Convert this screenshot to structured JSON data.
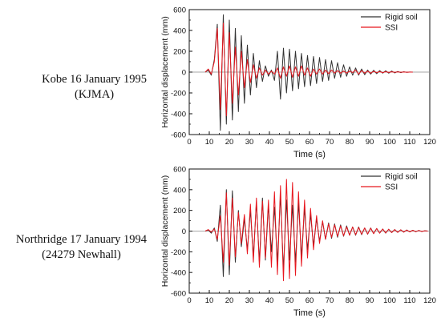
{
  "rows": [
    {
      "line1": "Kobe 16 January 1995",
      "line2": "(KJMA)"
    },
    {
      "line1": "Northridge 17 January 1994",
      "line2": "(24279 Newhall)"
    }
  ],
  "colors": {
    "rigid": "#333333",
    "ssi": "#e8171f",
    "axis": "#111111"
  },
  "chart_data": [
    {
      "type": "line",
      "xlabel": "Time (s)",
      "ylabel": "Horizontal displacement (mm)",
      "xlim": [
        0,
        120
      ],
      "ylim": [
        -600,
        600
      ],
      "xticks": [
        0,
        10,
        20,
        30,
        40,
        50,
        60,
        70,
        80,
        90,
        100,
        110,
        120
      ],
      "yticks": [
        -600,
        -400,
        -200,
        0,
        200,
        400,
        600
      ],
      "legend_position": "top-right",
      "series": [
        {
          "name": "Rigid soil",
          "color": "#333333",
          "x": [
            8,
            9.5,
            11,
            12.5,
            14,
            15.5,
            17,
            18.5,
            20,
            21.5,
            23,
            24.5,
            26,
            27.5,
            29,
            30.5,
            32,
            33.5,
            35,
            36.5,
            38,
            39.5,
            41,
            42.5,
            44,
            45.5,
            47,
            48.5,
            50,
            51.5,
            53,
            54.5,
            56,
            57.5,
            59,
            60.5,
            62,
            63.5,
            65,
            66.5,
            68,
            69.5,
            71,
            72.5,
            74,
            75.5,
            77,
            78.5,
            80,
            81.5,
            83,
            84.5,
            86,
            87.5,
            89,
            90.5,
            92,
            93.5,
            95,
            96.5,
            98,
            99.5,
            101,
            102.5,
            104,
            105.5,
            107,
            108.5,
            110,
            111.5
          ],
          "y": [
            0,
            20,
            -30,
            120,
            460,
            -560,
            550,
            -500,
            500,
            -460,
            420,
            -380,
            350,
            -300,
            260,
            -220,
            180,
            -150,
            110,
            -90,
            60,
            -40,
            20,
            -80,
            200,
            -260,
            230,
            -200,
            220,
            -180,
            200,
            -160,
            180,
            -140,
            160,
            -130,
            150,
            -110,
            140,
            -90,
            120,
            -80,
            110,
            -60,
            90,
            -50,
            70,
            -40,
            50,
            -30,
            40,
            -30,
            30,
            -25,
            20,
            -20,
            18,
            -15,
            15,
            -10,
            12,
            -10,
            10,
            -8,
            6,
            -5,
            3,
            -2,
            1,
            0
          ]
        },
        {
          "name": "SSI",
          "color": "#e8171f",
          "x": [
            8,
            9.5,
            11,
            12.5,
            14,
            15.5,
            17,
            18.5,
            20,
            21.5,
            23,
            24.5,
            26,
            27.5,
            29,
            30.5,
            32,
            33.5,
            35,
            36.5,
            38,
            39.5,
            41,
            42.5,
            44,
            45.5,
            47,
            48.5,
            50,
            51.5,
            53,
            54.5,
            56,
            57.5,
            59,
            60.5,
            62,
            63.5,
            65,
            66.5,
            68,
            69.5,
            71,
            72.5,
            74,
            75.5,
            77,
            78.5,
            80,
            81.5,
            83,
            84.5,
            86,
            87.5,
            89,
            90.5,
            92,
            93.5,
            95,
            96.5,
            98,
            99.5,
            101,
            102.5,
            104,
            105.5,
            107,
            108.5,
            110,
            111.5
          ],
          "y": [
            0,
            30,
            -20,
            100,
            420,
            -360,
            470,
            -420,
            380,
            -300,
            240,
            -220,
            200,
            -150,
            120,
            -100,
            70,
            -60,
            40,
            -30,
            20,
            -20,
            10,
            -20,
            40,
            -60,
            50,
            -40,
            60,
            -50,
            50,
            -40,
            60,
            -30,
            40,
            -40,
            30,
            -20,
            30,
            -20,
            20,
            -15,
            20,
            -10,
            15,
            -10,
            10,
            -10,
            10,
            -5,
            20,
            -20,
            15,
            -10,
            10,
            -10,
            8,
            -5,
            5,
            -5,
            4,
            -3,
            3,
            -2,
            2,
            -1,
            1,
            -1,
            0,
            0
          ]
        }
      ]
    },
    {
      "type": "line",
      "xlabel": "Time (s)",
      "ylabel": "Horizontal displacement (mm)",
      "xlim": [
        0,
        120
      ],
      "ylim": [
        -600,
        600
      ],
      "xticks": [
        0,
        10,
        20,
        30,
        40,
        50,
        60,
        70,
        80,
        90,
        100,
        110,
        120
      ],
      "yticks": [
        -600,
        -400,
        -200,
        0,
        200,
        400,
        600
      ],
      "legend_position": "top-right",
      "series": [
        {
          "name": "Rigid soil",
          "color": "#333333",
          "x": [
            8,
            9.5,
            11,
            12.5,
            14,
            15.5,
            17,
            18.5,
            20,
            21.5,
            23,
            24.5,
            26,
            27.5,
            29,
            30.5,
            32,
            33.5,
            35,
            36.5,
            38,
            39.5,
            41,
            42.5,
            44,
            45.5,
            47,
            48.5,
            50,
            51.5,
            53,
            54.5,
            56,
            57.5,
            59,
            60.5,
            62,
            63.5,
            65,
            66.5,
            68,
            69.5,
            71,
            72.5,
            74,
            75.5,
            77,
            78.5,
            80,
            81.5,
            83,
            84.5,
            86,
            87.5,
            89,
            90.5,
            92,
            93.5,
            95,
            96.5,
            98,
            99.5,
            101,
            102.5,
            104,
            105.5,
            107,
            108.5,
            110,
            111.5,
            113,
            114.5,
            116,
            117.5,
            119
          ],
          "y": [
            0,
            10,
            -20,
            30,
            -100,
            250,
            -440,
            400,
            -420,
            390,
            -300,
            200,
            -150,
            120,
            -180,
            200,
            -250,
            280,
            -300,
            320,
            -280,
            250,
            -200,
            230,
            -300,
            350,
            -380,
            300,
            -280,
            250,
            -300,
            270,
            -250,
            220,
            -180,
            160,
            -140,
            120,
            -100,
            90,
            -80,
            80,
            -70,
            70,
            -60,
            60,
            -50,
            50,
            -40,
            40,
            -40,
            40,
            -35,
            30,
            -30,
            30,
            -25,
            25,
            -20,
            20,
            -20,
            18,
            -15,
            15,
            -12,
            12,
            -10,
            10,
            -8,
            8,
            -6,
            6,
            -4,
            3,
            0
          ]
        },
        {
          "name": "SSI",
          "color": "#e8171f",
          "x": [
            8,
            9.5,
            11,
            12.5,
            14,
            15.5,
            17,
            18.5,
            20,
            21.5,
            23,
            24.5,
            26,
            27.5,
            29,
            30.5,
            32,
            33.5,
            35,
            36.5,
            38,
            39.5,
            41,
            42.5,
            44,
            45.5,
            47,
            48.5,
            50,
            51.5,
            53,
            54.5,
            56,
            57.5,
            59,
            60.5,
            62,
            63.5,
            65,
            66.5,
            68,
            69.5,
            71,
            72.5,
            74,
            75.5,
            77,
            78.5,
            80,
            81.5,
            83,
            84.5,
            86,
            87.5,
            89,
            90.5,
            92,
            93.5,
            95,
            96.5,
            98,
            99.5,
            101,
            102.5,
            104,
            105.5,
            107,
            108.5,
            110,
            111.5,
            113,
            114.5,
            116,
            117.5,
            119
          ],
          "y": [
            0,
            15,
            -10,
            20,
            -80,
            150,
            -300,
            370,
            -330,
            320,
            -250,
            180,
            -120,
            160,
            -220,
            260,
            -300,
            320,
            -350,
            290,
            -260,
            300,
            -350,
            380,
            -420,
            440,
            -480,
            500,
            -460,
            470,
            -430,
            380,
            -340,
            300,
            -260,
            220,
            -180,
            150,
            -120,
            100,
            -80,
            70,
            -60,
            60,
            -50,
            50,
            -45,
            40,
            -40,
            40,
            -35,
            35,
            -30,
            30,
            -28,
            28,
            -25,
            25,
            -20,
            20,
            -18,
            18,
            -15,
            15,
            -12,
            12,
            -10,
            10,
            -8,
            8,
            -6,
            6,
            -4,
            3,
            0
          ]
        }
      ]
    }
  ]
}
